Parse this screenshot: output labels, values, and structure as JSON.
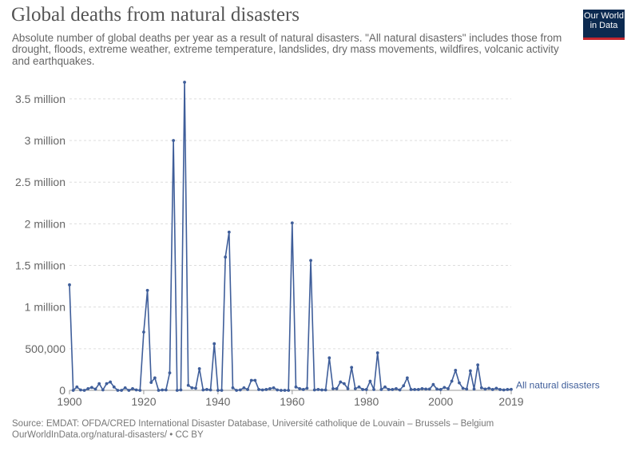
{
  "header": {
    "title": "Global deaths from natural disasters",
    "subtitle": "Absolute number of global deaths per year as a result of natural disasters. \"All natural disasters\" includes those from drought, floods, extreme weather, extreme temperature, landslides, dry mass movements, wildfires, volcanic activity and earthquakes.",
    "logo_line1": "Our World",
    "logo_line2": "in Data"
  },
  "footer": {
    "source": "Source: EMDAT: OFDA/CRED International Disaster Database, Université catholique de Louvain – Brussels – Belgium",
    "url": "OurWorldInData.org/natural-disasters/ • CC BY"
  },
  "colors": {
    "series": "#3f5e9a",
    "grid": "#dddddd",
    "axis_text": "#666666",
    "logo_bg": "#0c2a50",
    "logo_accent": "#c4262e"
  },
  "chart_data": {
    "type": "line",
    "xlim": [
      1900,
      2019
    ],
    "ylim": [
      0,
      3700000
    ],
    "x_ticks": [
      {
        "value": 1900,
        "label": "1900"
      },
      {
        "value": 1920,
        "label": "1920"
      },
      {
        "value": 1940,
        "label": "1940"
      },
      {
        "value": 1960,
        "label": "1960"
      },
      {
        "value": 1980,
        "label": "1980"
      },
      {
        "value": 2000,
        "label": "2000"
      },
      {
        "value": 2019,
        "label": "2019"
      }
    ],
    "y_ticks": [
      {
        "value": 0,
        "label": "0"
      },
      {
        "value": 500000,
        "label": "500,000"
      },
      {
        "value": 1000000,
        "label": "1 million"
      },
      {
        "value": 1500000,
        "label": "1.5 million"
      },
      {
        "value": 2000000,
        "label": "2 million"
      },
      {
        "value": 2500000,
        "label": "2.5 million"
      },
      {
        "value": 3000000,
        "label": "3 million"
      },
      {
        "value": 3500000,
        "label": "3.5 million"
      }
    ],
    "grid": true,
    "series": [
      {
        "name": "All natural disasters",
        "x": [
          1900,
          1901,
          1902,
          1903,
          1904,
          1905,
          1906,
          1907,
          1908,
          1909,
          1910,
          1911,
          1912,
          1913,
          1914,
          1915,
          1916,
          1917,
          1918,
          1919,
          1920,
          1921,
          1922,
          1923,
          1924,
          1925,
          1926,
          1927,
          1928,
          1929,
          1930,
          1931,
          1932,
          1933,
          1934,
          1935,
          1936,
          1937,
          1938,
          1939,
          1940,
          1941,
          1942,
          1943,
          1944,
          1945,
          1946,
          1947,
          1948,
          1949,
          1950,
          1951,
          1952,
          1953,
          1954,
          1955,
          1956,
          1957,
          1958,
          1959,
          1960,
          1961,
          1962,
          1963,
          1964,
          1965,
          1966,
          1967,
          1968,
          1969,
          1970,
          1971,
          1972,
          1973,
          1974,
          1975,
          1976,
          1977,
          1978,
          1979,
          1980,
          1981,
          1982,
          1983,
          1984,
          1985,
          1986,
          1987,
          1988,
          1989,
          1990,
          1991,
          1992,
          1993,
          1994,
          1995,
          1996,
          1997,
          1998,
          1999,
          2000,
          2001,
          2002,
          2003,
          2004,
          2005,
          2006,
          2007,
          2008,
          2009,
          2010,
          2011,
          2012,
          2013,
          2014,
          2015,
          2016,
          2017,
          2018,
          2019
        ],
        "y": [
          1267000,
          0,
          40000,
          5000,
          0,
          20000,
          35000,
          15000,
          80000,
          5000,
          80000,
          100000,
          40000,
          0,
          0,
          30000,
          0,
          20000,
          5000,
          0,
          700000,
          1200000,
          95000,
          150000,
          0,
          5000,
          5000,
          210000,
          3000000,
          0,
          5000,
          3700000,
          60000,
          30000,
          25000,
          260000,
          5000,
          10000,
          5000,
          560000,
          0,
          0,
          1600000,
          1900000,
          30000,
          0,
          5000,
          30000,
          10000,
          120000,
          120000,
          10000,
          5000,
          10000,
          20000,
          30000,
          5000,
          0,
          0,
          0,
          2010000,
          40000,
          20000,
          10000,
          25000,
          1560000,
          5000,
          10000,
          5000,
          5000,
          390000,
          20000,
          20000,
          100000,
          80000,
          20000,
          275000,
          20000,
          40000,
          10000,
          10000,
          110000,
          10000,
          450000,
          10000,
          40000,
          10000,
          10000,
          20000,
          5000,
          55000,
          150000,
          10000,
          10000,
          10000,
          20000,
          15000,
          15000,
          70000,
          15000,
          10000,
          35000,
          20000,
          110000,
          240000,
          90000,
          25000,
          15000,
          235000,
          15000,
          305000,
          30000,
          15000,
          25000,
          10000,
          25000,
          10000,
          5000,
          10000,
          12000
        ]
      }
    ]
  }
}
